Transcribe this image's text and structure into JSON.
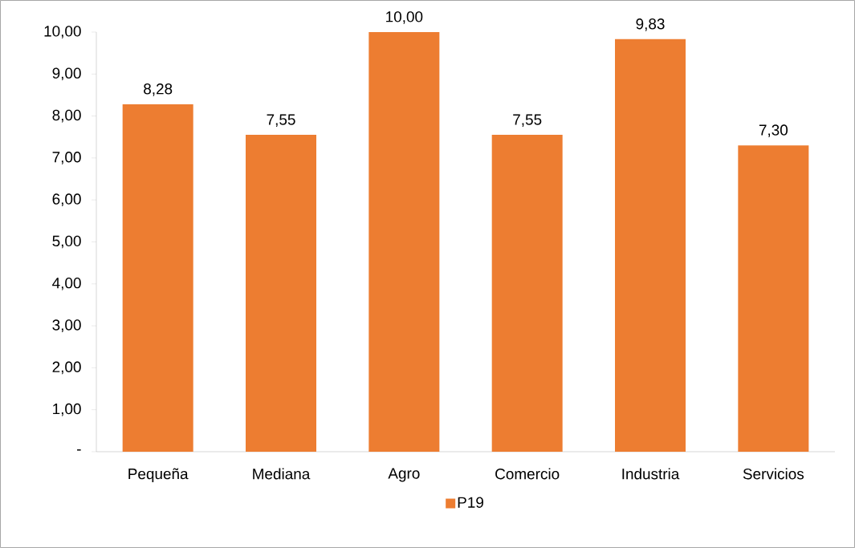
{
  "chart_data": {
    "type": "bar",
    "categories": [
      "Pequeña",
      "Mediana",
      "Agro",
      "Comercio",
      "Industria",
      "Servicios"
    ],
    "series": [
      {
        "name": "P19",
        "color": "#ed7d31",
        "values": [
          8.28,
          7.55,
          10.0,
          7.55,
          9.83,
          7.3
        ],
        "value_labels": [
          "8,28",
          "7,55",
          "10,00",
          "7,55",
          "9,83",
          "7,30"
        ]
      }
    ],
    "ylim": [
      0,
      10
    ],
    "yticks": [
      {
        "value": 0,
        "label": "-"
      },
      {
        "value": 1,
        "label": "1,00"
      },
      {
        "value": 2,
        "label": "2,00"
      },
      {
        "value": 3,
        "label": "3,00"
      },
      {
        "value": 4,
        "label": "4,00"
      },
      {
        "value": 5,
        "label": "5,00"
      },
      {
        "value": 6,
        "label": "6,00"
      },
      {
        "value": 7,
        "label": "7,00"
      },
      {
        "value": 8,
        "label": "8,00"
      },
      {
        "value": 9,
        "label": "9,00"
      },
      {
        "value": 10,
        "label": "10,00"
      }
    ],
    "legend": "bottom"
  }
}
